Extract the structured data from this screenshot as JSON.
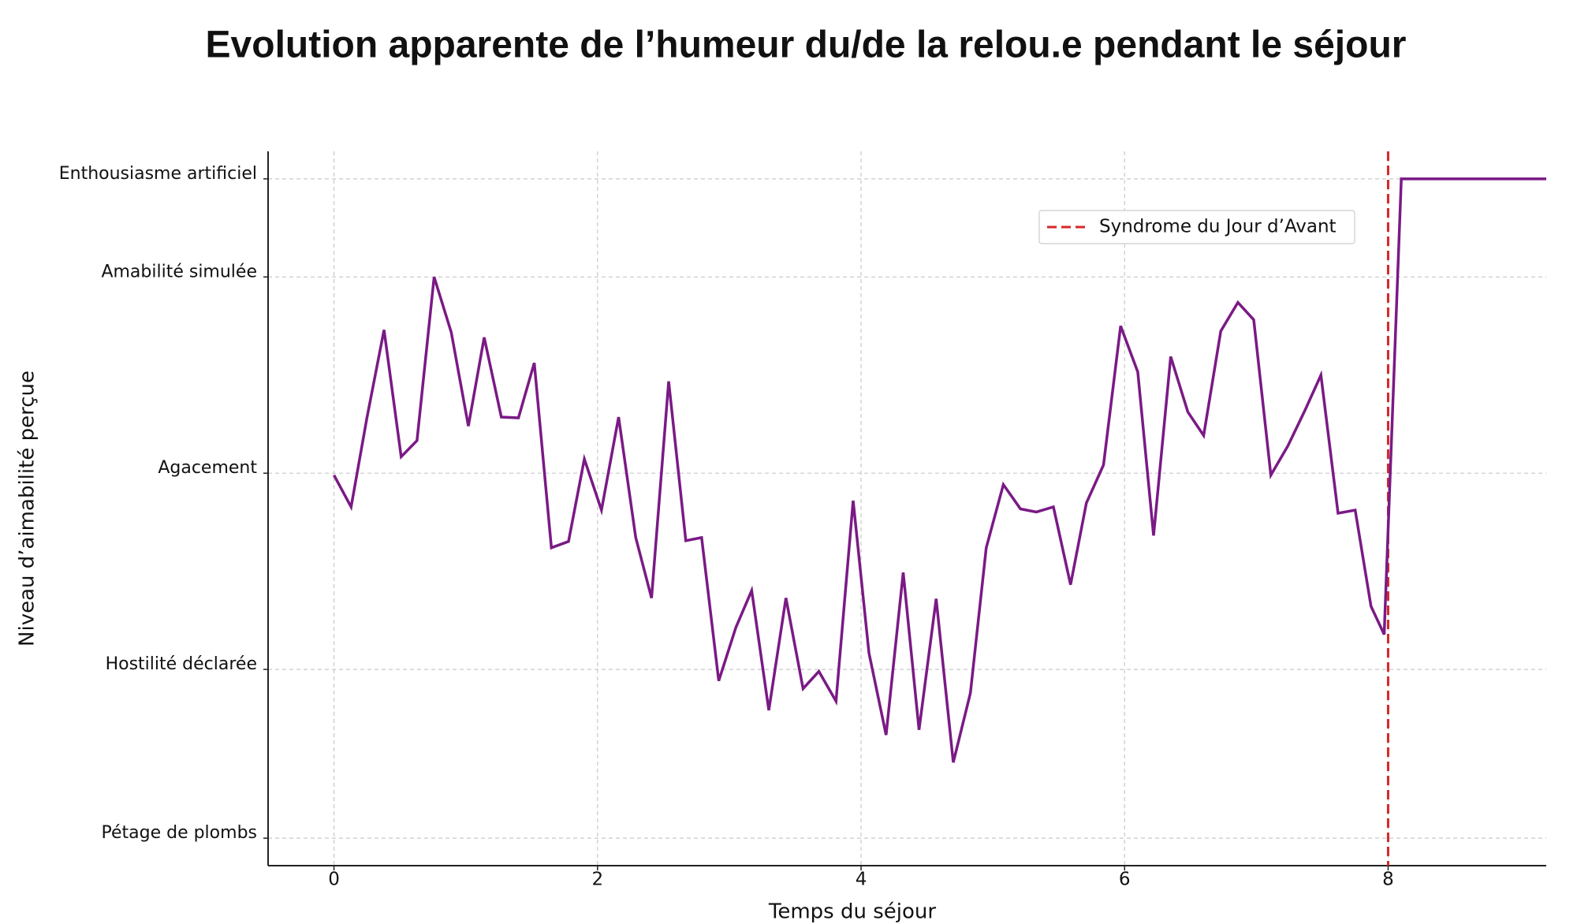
{
  "chart_data": {
    "type": "line",
    "title": "Evolution apparente de l’humeur du/de la relou.e pendant le séjour",
    "x_label": "Temps du séjour",
    "y_label": "Niveau d’aimabilité perçue",
    "x": [
      0,
      0.13,
      0.25,
      0.38,
      0.51,
      0.63,
      0.76,
      0.89,
      1.02,
      1.14,
      1.27,
      1.4,
      1.52,
      1.65,
      1.78,
      1.9,
      2.03,
      2.16,
      2.29,
      2.41,
      2.54,
      2.67,
      2.79,
      2.92,
      3.05,
      3.17,
      3.3,
      3.43,
      3.56,
      3.68,
      3.81,
      3.94,
      4.06,
      4.19,
      4.32,
      4.44,
      4.57,
      4.7,
      4.83,
      4.95,
      5.08,
      5.21,
      5.33,
      5.46,
      5.59,
      5.71,
      5.84,
      5.97,
      6.1,
      6.22,
      6.35,
      6.48,
      6.6,
      6.73,
      6.86,
      6.98,
      7.11,
      7.24,
      7.37,
      7.49,
      7.62,
      7.75,
      7.87,
      7.97,
      8.1,
      9.2
    ],
    "series": [
      {
        "color": "#7a1a85",
        "values": [
          -0.05,
          -0.86,
          1.41,
          3.65,
          0.42,
          0.83,
          5.0,
          3.59,
          1.2,
          3.46,
          1.43,
          1.41,
          2.81,
          -1.9,
          -1.74,
          0.36,
          -0.94,
          1.43,
          -1.64,
          -3.18,
          2.34,
          -1.72,
          -1.64,
          -5.29,
          -3.93,
          -2.99,
          -6.04,
          -3.18,
          -5.49,
          -5.05,
          -5.81,
          -0.7,
          -4.58,
          -6.67,
          -2.53,
          -6.54,
          -3.2,
          -7.37,
          -5.6,
          -1.9,
          -0.29,
          -0.91,
          -0.99,
          -0.86,
          -2.84,
          -0.76,
          0.21,
          3.75,
          2.58,
          -1.59,
          2.97,
          1.56,
          0.96,
          3.62,
          4.35,
          3.91,
          -0.05,
          0.7,
          1.61,
          2.5,
          -1.02,
          -0.94,
          -3.39,
          -4.11,
          7.5,
          7.5
        ]
      }
    ],
    "vlines": [
      {
        "x": 8,
        "name": "Syndrome du Jour d’Avant",
        "color": "#d62728"
      }
    ],
    "xlim": [
      -0.5,
      9.2
    ],
    "ylim": [
      -10,
      8.2
    ],
    "xticks": [
      0,
      2,
      4,
      6,
      8
    ],
    "yticks": [
      {
        "value": -9.3,
        "label": "Pétage de plombs"
      },
      {
        "value": -5,
        "label": "Hostilité déclarée"
      },
      {
        "value": 0,
        "label": "Agacement"
      },
      {
        "value": 5,
        "label": "Amabilité simulée"
      },
      {
        "value": 7.5,
        "label": "Enthousiasme artificiel"
      }
    ],
    "grid": true,
    "legend": "upper right"
  }
}
